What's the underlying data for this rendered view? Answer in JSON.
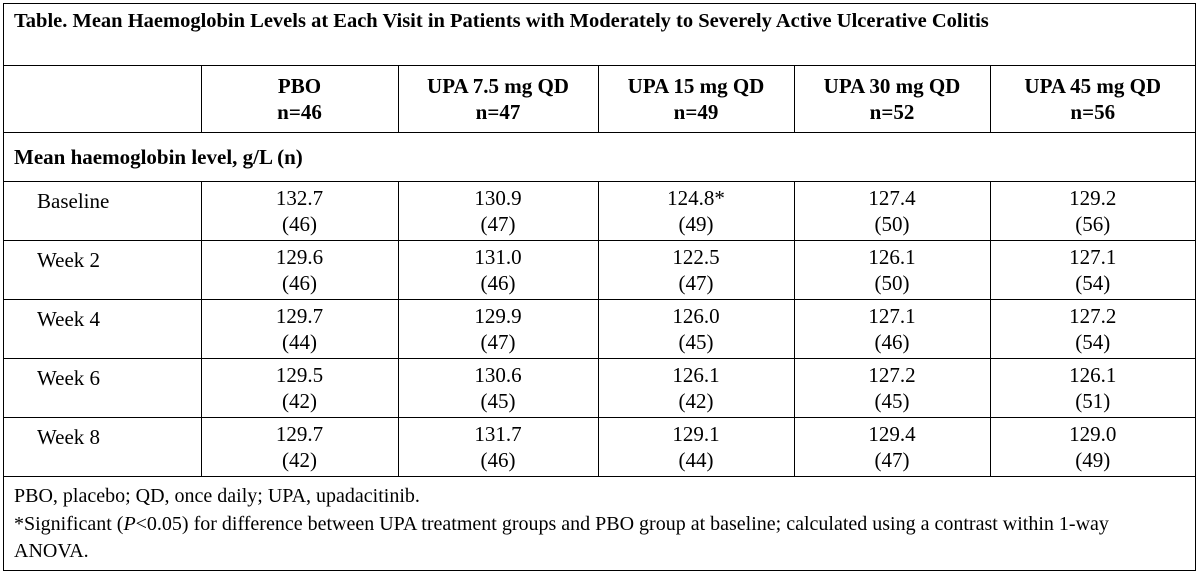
{
  "title": "Table. Mean Haemoglobin Levels at Each Visit in Patients with Moderately to Severely Active Ulcerative Colitis",
  "columns": [
    {
      "name": "PBO",
      "n": "n=46"
    },
    {
      "name": "UPA 7.5 mg QD",
      "n": "n=47"
    },
    {
      "name": "UPA 15 mg QD",
      "n": "n=49"
    },
    {
      "name": "UPA 30 mg QD",
      "n": "n=52"
    },
    {
      "name": "UPA 45 mg QD",
      "n": "n=56"
    }
  ],
  "section_label": "Mean haemoglobin level, g/L (n)",
  "rows": [
    {
      "label": "Baseline",
      "cells": [
        {
          "value": "132.7",
          "count": "(46)"
        },
        {
          "value": "130.9",
          "count": "(47)"
        },
        {
          "value": "124.8*",
          "count": "(49)"
        },
        {
          "value": "127.4",
          "count": "(50)"
        },
        {
          "value": "129.2",
          "count": "(56)"
        }
      ]
    },
    {
      "label": "Week 2",
      "cells": [
        {
          "value": "129.6",
          "count": "(46)"
        },
        {
          "value": "131.0",
          "count": "(46)"
        },
        {
          "value": "122.5",
          "count": "(47)"
        },
        {
          "value": "126.1",
          "count": "(50)"
        },
        {
          "value": "127.1",
          "count": "(54)"
        }
      ]
    },
    {
      "label": "Week 4",
      "cells": [
        {
          "value": "129.7",
          "count": "(44)"
        },
        {
          "value": "129.9",
          "count": "(47)"
        },
        {
          "value": "126.0",
          "count": "(45)"
        },
        {
          "value": "127.1",
          "count": "(46)"
        },
        {
          "value": "127.2",
          "count": "(54)"
        }
      ]
    },
    {
      "label": "Week 6",
      "cells": [
        {
          "value": "129.5",
          "count": "(42)"
        },
        {
          "value": "130.6",
          "count": "(45)"
        },
        {
          "value": "126.1",
          "count": "(42)"
        },
        {
          "value": "127.2",
          "count": "(45)"
        },
        {
          "value": "126.1",
          "count": "(51)"
        }
      ]
    },
    {
      "label": "Week 8",
      "cells": [
        {
          "value": "129.7",
          "count": "(42)"
        },
        {
          "value": "131.7",
          "count": "(46)"
        },
        {
          "value": "129.1",
          "count": "(44)"
        },
        {
          "value": "129.4",
          "count": "(47)"
        },
        {
          "value": "129.0",
          "count": "(49)"
        }
      ]
    }
  ],
  "footnotes": {
    "abbreviations": "PBO, placebo; QD, once daily; UPA, upadacitinib.",
    "significance_prefix": "*Significant (",
    "significance_italic": "P",
    "significance_suffix": "<0.05) for difference between UPA treatment groups and PBO group at baseline; calculated using a contrast within 1-way ANOVA."
  }
}
